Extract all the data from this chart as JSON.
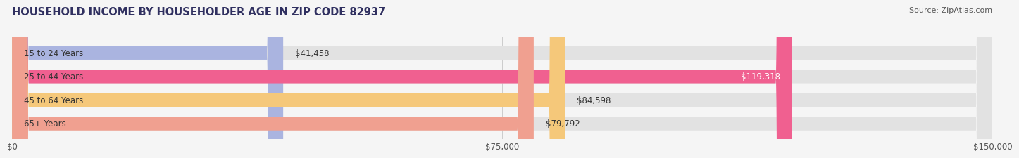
{
  "title": "HOUSEHOLD INCOME BY HOUSEHOLDER AGE IN ZIP CODE 82937",
  "source": "Source: ZipAtlas.com",
  "categories": [
    "15 to 24 Years",
    "25 to 44 Years",
    "45 to 64 Years",
    "65+ Years"
  ],
  "values": [
    41458,
    119318,
    84598,
    79792
  ],
  "bar_colors": [
    "#aab4e0",
    "#f06090",
    "#f5c87a",
    "#f0a090"
  ],
  "label_colors": [
    "#333333",
    "#ffffff",
    "#333333",
    "#333333"
  ],
  "xlim": [
    0,
    150000
  ],
  "xtick_values": [
    0,
    75000,
    150000
  ],
  "xtick_labels": [
    "$0",
    "$75,000",
    "$150,000"
  ],
  "title_fontsize": 10.5,
  "source_fontsize": 8,
  "label_fontsize": 8.5,
  "bar_height": 0.58,
  "background_color": "#f5f5f5",
  "bar_bg_color": "#e2e2e2",
  "title_color": "#303060",
  "source_color": "#555555"
}
